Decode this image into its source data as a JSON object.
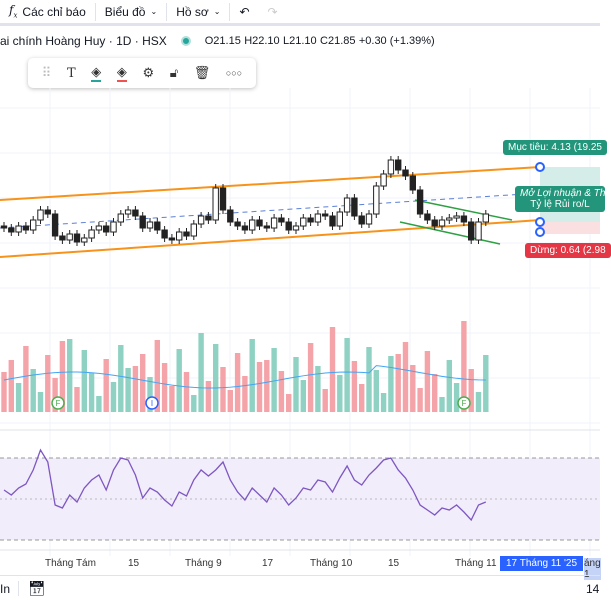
{
  "toolbar": {
    "indicators_label": "Các chỉ báo",
    "chart_label": "Biểu đồ",
    "profile_label": "Hồ sơ",
    "fx_icon": "fx-icon",
    "undo_icon": "undo-icon",
    "redo_icon": "redo-icon"
  },
  "legend": {
    "title": "ai chính Hoàng Huy · 1D · HSX",
    "open": "O21.15",
    "high": "H22.10",
    "low": "L21.10",
    "close": "C21.85",
    "change": "+0.30 (+1.39%)",
    "status_color": "#26a69a"
  },
  "drawing_toolbar": {
    "icons": [
      "drag-handle-icon",
      "text-icon",
      "line-color-icon",
      "fill-color-icon",
      "settings-icon",
      "unlock-icon",
      "trash-icon",
      "more-icon"
    ]
  },
  "position_tool": {
    "target_label": "Mục tiêu: 4.13 (19.25",
    "open_label_line1": "Mở Lợi nhuận & Th",
    "open_label_line2": "Tỷ lệ Rủi ro/L",
    "stop_label": "Dừng: 0.64 (2.98",
    "target_color": "#22957a",
    "stop_color": "#e53646"
  },
  "markers": [
    "F",
    "I",
    "F"
  ],
  "time_axis": {
    "ticks": [
      "Tháng Tám",
      "15",
      "Tháng 9",
      "17",
      "Tháng 10",
      "15",
      "Tháng 11"
    ],
    "cursor_label": "17 Tháng 11 '25",
    "next_label": "áng 1"
  },
  "bottom_bar": {
    "left_text": "In",
    "right_text": "14"
  },
  "colors": {
    "up": "#26a69a",
    "down": "#ef5350",
    "channel": "#f7931a",
    "rsi": "#7e57c2"
  }
}
